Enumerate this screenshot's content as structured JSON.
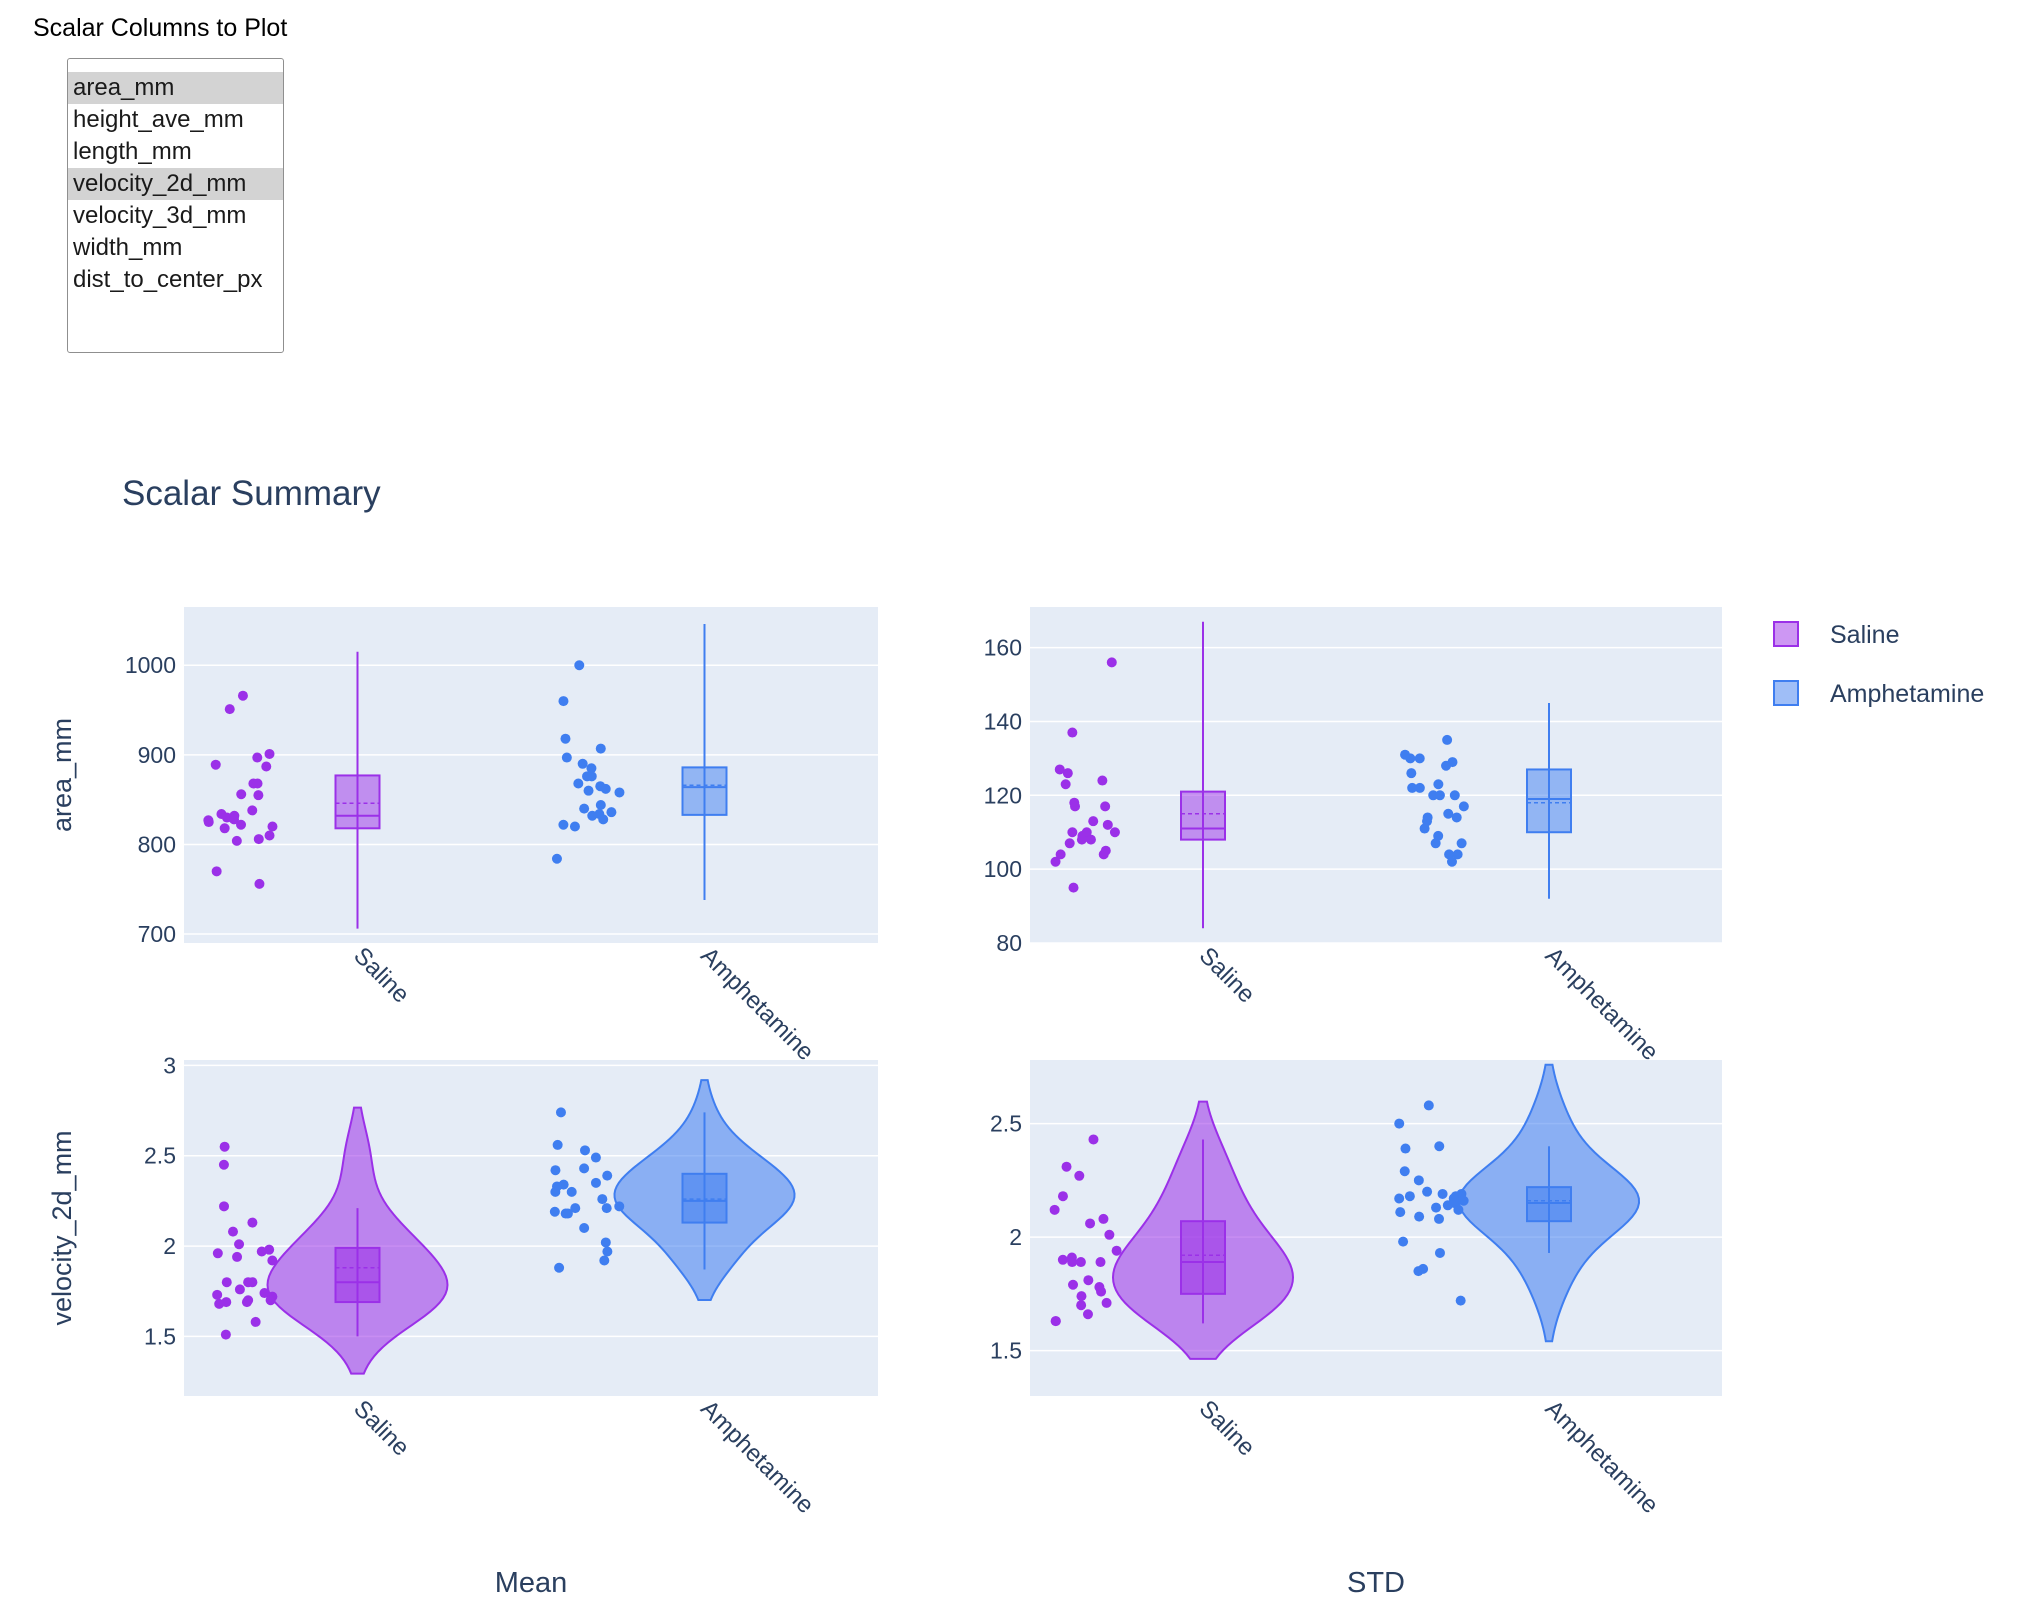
{
  "select": {
    "label": "Scalar Columns to Plot",
    "options": [
      "area_mm",
      "height_ave_mm",
      "length_mm",
      "velocity_2d_mm",
      "velocity_3d_mm",
      "width_mm",
      "dist_to_center_px"
    ],
    "selected": [
      "area_mm",
      "velocity_2d_mm"
    ]
  },
  "figure": {
    "title": "Scalar Summary",
    "col_labels": [
      "Mean",
      "STD"
    ],
    "row_labels": [
      "area_mm",
      "velocity_2d_mm"
    ],
    "categories": [
      "Saline",
      "Amphetamine"
    ],
    "colors": {
      "Saline": "#9b30e8",
      "Amphetamine": "#3f7ef0",
      "grid_bg": "#e5ecf6",
      "text": "#2a3f5f"
    },
    "legend": {
      "position": "top-right",
      "entries": [
        "Saline",
        "Amphetamine"
      ]
    }
  },
  "chart_data": [
    {
      "type": "scatter",
      "title": "",
      "xlabel": "",
      "ylabel": "area_mm",
      "column": "Mean",
      "categories": [
        "Saline",
        "Amphetamine"
      ],
      "ylim": [
        690,
        1065
      ],
      "yticks": [
        700,
        800,
        900,
        1000
      ],
      "series": [
        {
          "name": "Saline",
          "display": "box",
          "points": [
            966,
            951,
            901,
            897,
            889,
            887,
            868,
            868,
            856,
            855,
            838,
            834,
            832,
            830,
            828,
            827,
            825,
            822,
            820,
            818,
            810,
            806,
            804,
            770,
            756
          ],
          "stats": {
            "min": 706,
            "q1": 818,
            "median": 832,
            "mean": 846,
            "q3": 877,
            "max": 1015
          }
        },
        {
          "name": "Amphetamine",
          "display": "box",
          "points": [
            1000,
            960,
            918,
            907,
            897,
            890,
            885,
            876,
            876,
            868,
            865,
            862,
            860,
            858,
            844,
            840,
            836,
            834,
            832,
            828,
            822,
            820,
            784
          ],
          "stats": {
            "min": 738,
            "q1": 833,
            "median": 864,
            "mean": 866,
            "q3": 886,
            "max": 1046
          }
        }
      ]
    },
    {
      "type": "scatter",
      "title": "",
      "xlabel": "",
      "ylabel": "",
      "column": "STD",
      "categories": [
        "Saline",
        "Amphetamine"
      ],
      "ylim": [
        80,
        171
      ],
      "yticks": [
        80,
        100,
        120,
        140,
        160
      ],
      "series": [
        {
          "name": "Saline",
          "display": "box",
          "points": [
            156,
            137,
            127,
            126,
            124,
            123,
            118,
            117,
            117,
            113,
            112,
            110,
            110,
            110,
            109,
            108,
            108,
            107,
            105,
            104,
            104,
            102,
            95
          ],
          "stats": {
            "min": 84,
            "q1": 108,
            "median": 111,
            "mean": 115,
            "q3": 121,
            "max": 167
          }
        },
        {
          "name": "Amphetamine",
          "display": "box",
          "points": [
            135,
            131,
            130,
            130,
            129,
            128,
            126,
            123,
            122,
            122,
            120,
            120,
            120,
            117,
            115,
            114,
            114,
            113,
            111,
            109,
            107,
            107,
            104,
            104,
            102
          ],
          "stats": {
            "min": 92,
            "q1": 110,
            "median": 119,
            "mean": 118,
            "q3": 127,
            "max": 145
          }
        }
      ]
    },
    {
      "type": "scatter",
      "title": "",
      "xlabel": "Mean",
      "ylabel": "velocity_2d_mm",
      "column": "Mean",
      "categories": [
        "Saline",
        "Amphetamine"
      ],
      "ylim": [
        1.17,
        3.03
      ],
      "yticks": [
        1.5,
        2,
        2.5,
        3
      ],
      "series": [
        {
          "name": "Saline",
          "display": "violin",
          "points": [
            2.55,
            2.45,
            2.22,
            2.13,
            2.08,
            2.01,
            1.98,
            1.97,
            1.96,
            1.94,
            1.92,
            1.8,
            1.8,
            1.8,
            1.76,
            1.74,
            1.73,
            1.72,
            1.7,
            1.7,
            1.69,
            1.69,
            1.68,
            1.58,
            1.51
          ],
          "stats": {
            "min": 1.5,
            "q1": 1.69,
            "median": 1.8,
            "mean": 1.88,
            "q3": 1.99,
            "max": 2.21
          }
        },
        {
          "name": "Amphetamine",
          "display": "violin",
          "points": [
            2.74,
            2.56,
            2.53,
            2.49,
            2.43,
            2.42,
            2.39,
            2.35,
            2.34,
            2.33,
            2.3,
            2.3,
            2.26,
            2.22,
            2.21,
            2.21,
            2.19,
            2.18,
            2.18,
            2.1,
            2.02,
            1.97,
            1.92,
            1.88
          ],
          "stats": {
            "min": 1.87,
            "q1": 2.13,
            "median": 2.25,
            "mean": 2.26,
            "q3": 2.4,
            "max": 2.74
          }
        }
      ]
    },
    {
      "type": "scatter",
      "title": "",
      "xlabel": "STD",
      "ylabel": "",
      "column": "STD",
      "categories": [
        "Saline",
        "Amphetamine"
      ],
      "ylim": [
        1.3,
        2.78
      ],
      "yticks": [
        1.5,
        2,
        2.5
      ],
      "series": [
        {
          "name": "Saline",
          "display": "violin",
          "points": [
            2.43,
            2.31,
            2.27,
            2.18,
            2.12,
            2.08,
            2.06,
            2.01,
            1.94,
            1.91,
            1.9,
            1.89,
            1.89,
            1.89,
            1.81,
            1.79,
            1.78,
            1.76,
            1.74,
            1.71,
            1.7,
            1.66,
            1.63,
            1.63
          ],
          "stats": {
            "min": 1.62,
            "q1": 1.75,
            "median": 1.89,
            "mean": 1.92,
            "q3": 2.07,
            "max": 2.43
          }
        },
        {
          "name": "Amphetamine",
          "display": "violin",
          "points": [
            2.58,
            2.5,
            2.4,
            2.39,
            2.29,
            2.25,
            2.2,
            2.19,
            2.19,
            2.18,
            2.18,
            2.17,
            2.17,
            2.16,
            2.15,
            2.14,
            2.13,
            2.12,
            2.11,
            2.09,
            2.08,
            1.98,
            1.93,
            1.86,
            1.85,
            1.72
          ],
          "stats": {
            "min": 1.93,
            "q1": 2.07,
            "median": 2.15,
            "mean": 2.16,
            "q3": 2.22,
            "max": 2.4
          }
        }
      ]
    }
  ]
}
